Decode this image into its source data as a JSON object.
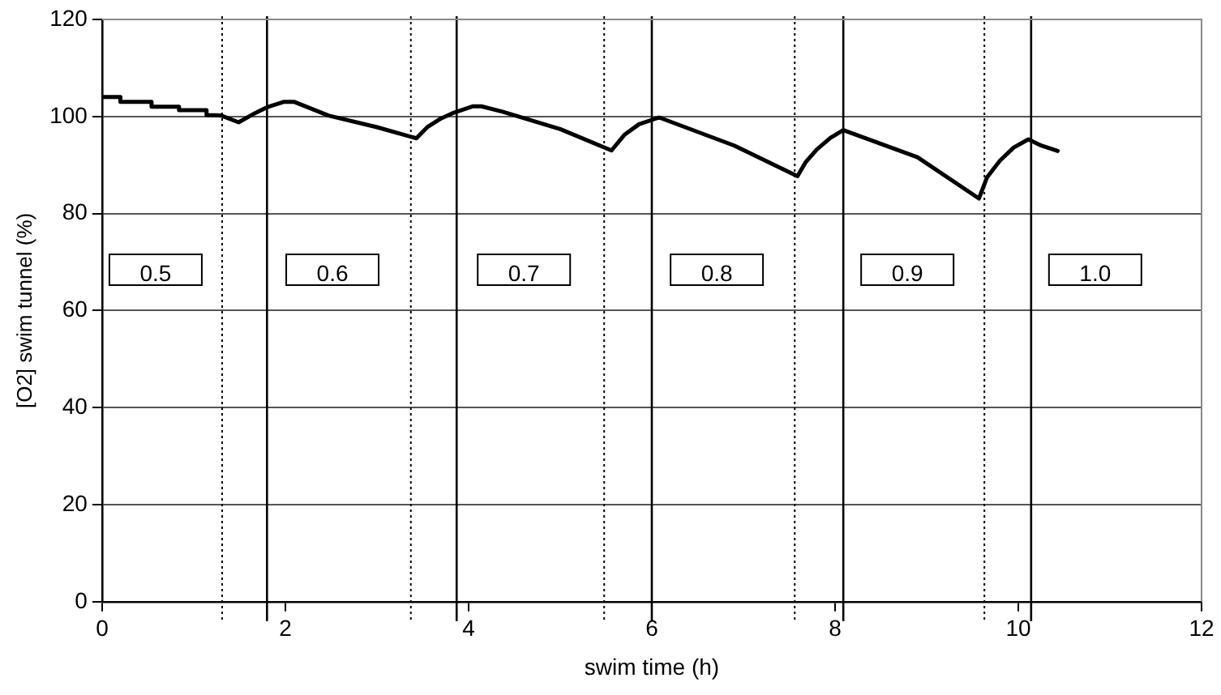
{
  "chart_data": {
    "type": "line",
    "xlabel": "swim time (h)",
    "ylabel": "[O2] swim tunnel (%)",
    "x": [
      0,
      0.2,
      0.2,
      0.54,
      0.54,
      0.84,
      0.84,
      1.14,
      1.14,
      1.3,
      1.49,
      1.65,
      1.8,
      1.98,
      2.1,
      2.47,
      3.0,
      3.43,
      3.55,
      3.7,
      3.84,
      4.05,
      4.14,
      4.37,
      5.0,
      5.56,
      5.7,
      5.86,
      6.08,
      6.9,
      7.59,
      7.68,
      7.8,
      7.95,
      8.09,
      8.9,
      9.57,
      9.66,
      9.8,
      9.95,
      10.11,
      10.25,
      10.43
    ],
    "series": [
      {
        "color": "#000000",
        "values": [
          104,
          104,
          103,
          103,
          102,
          102,
          101.3,
          101.3,
          100.3,
          100.2,
          98.8,
          100.5,
          101.9,
          103,
          103,
          100.2,
          97.8,
          95.5,
          97.8,
          99.6,
          100.8,
          102.1,
          102.1,
          101,
          97.4,
          93,
          96.2,
          98.4,
          99.8,
          94,
          87.7,
          90.6,
          93.2,
          95.6,
          97.2,
          91.6,
          83.1,
          87.5,
          90.9,
          93.6,
          95.3,
          94,
          92.9
        ]
      }
    ],
    "xlim": [
      0,
      12
    ],
    "xticks": [
      0,
      2,
      4,
      6,
      8,
      10,
      12
    ],
    "ylim": [
      0,
      120
    ],
    "yticks": [
      0,
      20,
      40,
      60,
      80,
      100,
      120
    ],
    "grid": "y",
    "legend": false,
    "marker": "none",
    "line_style": "solid",
    "ref_lines": [
      {
        "axis": "x",
        "value": 1.31,
        "line_style": "dotted",
        "color": "#000000"
      },
      {
        "axis": "x",
        "value": 1.8,
        "line_style": "solid",
        "color": "#000000"
      },
      {
        "axis": "x",
        "value": 3.37,
        "line_style": "dotted",
        "color": "#000000"
      },
      {
        "axis": "x",
        "value": 3.87,
        "line_style": "solid",
        "color": "#000000"
      },
      {
        "axis": "x",
        "value": 5.48,
        "line_style": "dotted",
        "color": "#000000"
      },
      {
        "axis": "x",
        "value": 6.0,
        "line_style": "solid",
        "color": "#000000"
      },
      {
        "axis": "x",
        "value": 7.56,
        "line_style": "dotted",
        "color": "#000000"
      },
      {
        "axis": "x",
        "value": 8.09,
        "line_style": "solid",
        "color": "#000000"
      },
      {
        "axis": "x",
        "value": 9.63,
        "line_style": "dotted",
        "color": "#000000"
      },
      {
        "axis": "x",
        "value": 10.14,
        "line_style": "solid",
        "color": "#000000"
      }
    ],
    "annotations": [
      "0.5",
      "0.6",
      "0.7",
      "0.8",
      "0.9",
      "1.0"
    ]
  }
}
